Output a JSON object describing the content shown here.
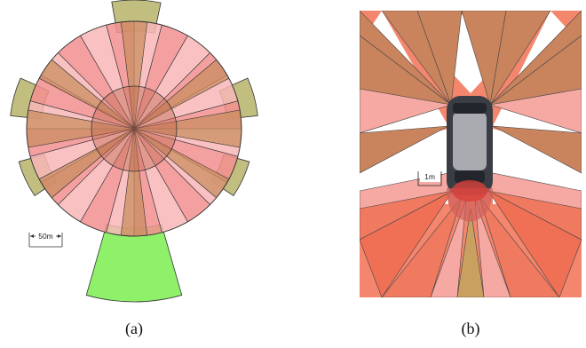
{
  "panel_a": {
    "caption": "(a)",
    "scale_label": "50m",
    "colors": {
      "wedge_light": "#f8b6b6",
      "wedge_mid": "#f38f8f",
      "wedge_brown": "#c98e60",
      "outer_sector": "#b6b36a",
      "rear_sector": "#8ff06a"
    }
  },
  "panel_b": {
    "caption": "(b)",
    "scale_label": "1m",
    "colors": {
      "background": "#f4866e",
      "wedge_brown": "#c9845e",
      "wedge_pink": "#f6a8a2",
      "car_body": "#3a3d44",
      "car_roof": "#a8aab0"
    }
  }
}
